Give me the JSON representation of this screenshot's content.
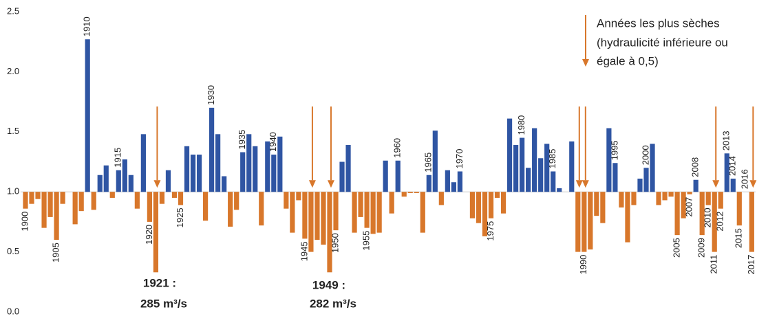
{
  "chart_data": {
    "type": "bar",
    "categories": [
      "1900",
      null,
      null,
      null,
      null,
      "1905",
      null,
      null,
      null,
      null,
      "1910",
      null,
      null,
      null,
      null,
      "1915",
      null,
      null,
      null,
      null,
      "1920",
      null,
      null,
      null,
      null,
      "1925",
      null,
      null,
      null,
      null,
      "1930",
      null,
      null,
      null,
      null,
      "1935",
      null,
      null,
      null,
      null,
      "1940",
      null,
      null,
      null,
      null,
      "1945",
      null,
      null,
      null,
      null,
      "1950",
      null,
      null,
      null,
      null,
      "1955",
      null,
      null,
      null,
      null,
      "1960",
      null,
      null,
      null,
      null,
      "1965",
      null,
      null,
      null,
      null,
      "1970",
      null,
      null,
      null,
      null,
      "1975",
      null,
      null,
      null,
      null,
      "1980",
      null,
      null,
      null,
      null,
      "1985",
      null,
      null,
      null,
      null,
      "1990",
      null,
      null,
      null,
      null,
      "1995",
      null,
      null,
      null,
      null,
      "2000",
      null,
      null,
      null,
      null,
      "2005",
      null,
      "2007",
      "2008",
      "2009",
      "2010",
      "2011",
      "2012",
      "2013",
      "2014",
      "2015",
      "2016",
      "2017"
    ],
    "values": [
      0.86,
      0.9,
      0.94,
      0.7,
      0.79,
      0.6,
      0.9,
      1.0,
      0.73,
      0.84,
      2.27,
      0.85,
      1.14,
      1.22,
      0.95,
      1.18,
      1.27,
      1.14,
      0.86,
      1.48,
      0.75,
      0.33,
      0.9,
      1.18,
      0.95,
      0.89,
      1.38,
      1.31,
      1.31,
      0.76,
      1.7,
      1.48,
      1.13,
      0.71,
      0.85,
      1.33,
      1.48,
      1.38,
      0.72,
      1.42,
      1.31,
      1.46,
      0.86,
      0.66,
      0.93,
      0.61,
      0.5,
      0.6,
      0.56,
      0.33,
      0.68,
      1.25,
      1.39,
      0.66,
      0.79,
      0.7,
      0.65,
      0.66,
      1.26,
      0.82,
      1.26,
      0.96,
      0.99,
      0.99,
      0.66,
      1.14,
      1.51,
      0.89,
      1.18,
      1.08,
      1.17,
      1.0,
      0.78,
      0.74,
      0.63,
      0.78,
      0.95,
      0.82,
      1.61,
      1.39,
      1.45,
      1.2,
      1.53,
      1.28,
      1.4,
      1.17,
      1.03,
      1.0,
      1.42,
      0.5,
      0.5,
      0.52,
      0.8,
      0.74,
      1.53,
      1.24,
      0.87,
      0.58,
      0.89,
      1.11,
      1.2,
      1.4,
      0.89,
      0.93,
      0.96,
      0.64,
      0.78,
      0.98,
      1.1,
      0.64,
      0.89,
      0.5,
      0.86,
      1.32,
      1.11,
      0.72,
      1.0,
      0.5
    ],
    "baseline": 1.0,
    "arrow_threshold": 0.5,
    "color_above": "#2f55a3",
    "color_below": "#d8772b",
    "ylim": [
      0,
      2.5
    ],
    "yticks": [
      {
        "value": 0,
        "label": "0.0"
      },
      0.5,
      {
        "value": 1,
        "label": "1.0"
      },
      1.5,
      {
        "value": 2,
        "label": "2.0"
      },
      2.5
    ],
    "grid": false,
    "legend_lines": [
      "Années les plus sèches",
      "(hydraulicité inférieure ou",
      "égale à 0,5)"
    ],
    "annotations": [
      [
        "1921 :",
        "285 m³/s"
      ],
      [
        "1949 :",
        "282 m³/s"
      ]
    ]
  }
}
